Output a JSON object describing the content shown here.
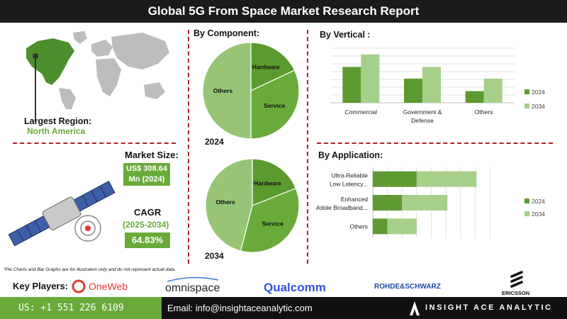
{
  "header": {
    "title": "Global 5G From Space Market Research Report"
  },
  "region": {
    "label": "Largest Region:",
    "value": "North America"
  },
  "market_size": {
    "label": "Market Size:",
    "value": "US$ 308.64 Mn (2024)"
  },
  "cagr": {
    "label": "CAGR",
    "period": "(2025-2034)",
    "value": "64.83%"
  },
  "component": {
    "title": "By Component:"
  },
  "vertical": {
    "title": "By Vertical :"
  },
  "application": {
    "title": "By Application:"
  },
  "note": "*Pie Charts and Bar Graphs are for illustration only and do not represent actual data.",
  "key_players": {
    "label": "Key Players:",
    "players": [
      "OneWeb",
      "omnispace",
      "Qualcomm",
      "ROHDE&SCHWARZ",
      "ERICSSON"
    ]
  },
  "footer": {
    "phone": "US: +1 551 226 6109",
    "email": "Email: info@insightaceanalytic.com",
    "brand": "INSIGHT ACE ANALYTIC"
  },
  "colors": {
    "dark_green": "#5e9a32",
    "mid_green": "#6aaa3a",
    "light_green": "#a6cf8a",
    "red": "#b22222"
  },
  "chart_data": [
    {
      "type": "pie",
      "title": "2024",
      "categories": [
        "Hardware",
        "Service",
        "Others"
      ],
      "values": [
        18,
        32,
        50
      ],
      "colors": [
        "#5b9a2f",
        "#6aaa3a",
        "#97c575"
      ]
    },
    {
      "type": "pie",
      "title": "2034",
      "categories": [
        "Hardware",
        "Service",
        "Others"
      ],
      "values": [
        19,
        35,
        46
      ],
      "colors": [
        "#5b9a2f",
        "#6aaa3a",
        "#97c575"
      ]
    },
    {
      "type": "bar",
      "title": "By Vertical",
      "categories": [
        "Commercial",
        "Government & Defense",
        "Others"
      ],
      "series": [
        {
          "name": "2024",
          "values": [
            46,
            31,
            15
          ],
          "color": "#5e9a32"
        },
        {
          "name": "2034",
          "values": [
            62,
            46,
            31
          ],
          "color": "#a6cf8a"
        }
      ],
      "ylim": [
        0,
        70
      ],
      "legend": "right"
    },
    {
      "type": "bar",
      "orientation": "horizontal",
      "stacked": true,
      "title": "By Application",
      "categories": [
        "Ultra-Reliable Low Latency...",
        "Enhanced Mobile Broadband...",
        "Others"
      ],
      "series": [
        {
          "name": "2024",
          "values": [
            60,
            40,
            20
          ],
          "color": "#5e9a32"
        },
        {
          "name": "2034",
          "values": [
            82,
            62,
            40
          ],
          "color": "#a6cf8a"
        }
      ],
      "xlim": [
        0,
        160
      ],
      "legend": "right"
    }
  ]
}
